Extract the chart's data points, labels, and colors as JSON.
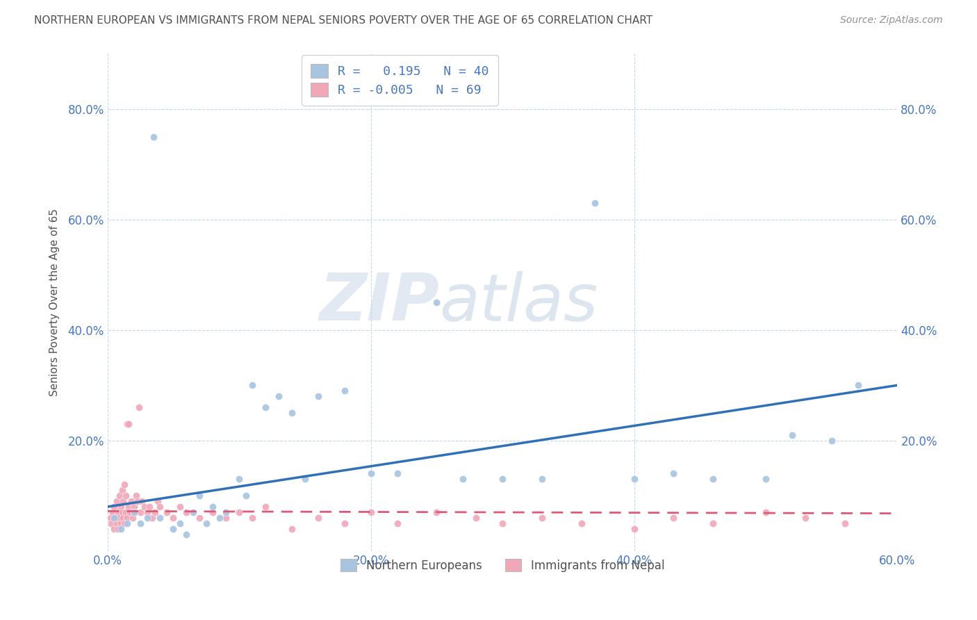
{
  "title": "NORTHERN EUROPEAN VS IMMIGRANTS FROM NEPAL SENIORS POVERTY OVER THE AGE OF 65 CORRELATION CHART",
  "source": "Source: ZipAtlas.com",
  "ylabel": "Seniors Poverty Over the Age of 65",
  "xlim": [
    0.0,
    0.6
  ],
  "ylim": [
    0.0,
    0.9
  ],
  "xtick_vals": [
    0.0,
    0.2,
    0.4,
    0.6
  ],
  "ytick_vals": [
    0.2,
    0.4,
    0.6,
    0.8
  ],
  "blue_R": 0.195,
  "blue_N": 40,
  "pink_R": -0.005,
  "pink_N": 69,
  "blue_color": "#a8c4e0",
  "pink_color": "#f0a8b8",
  "blue_line_color": "#3070b8",
  "pink_line_color": "#e05878",
  "watermark_zip": "ZIP",
  "watermark_atlas": "atlas",
  "legend_label_blue": "Northern Europeans",
  "legend_label_pink": "Immigrants from Nepal",
  "blue_scatter_x": [
    0.005,
    0.01,
    0.015,
    0.02,
    0.025,
    0.03,
    0.035,
    0.04,
    0.05,
    0.055,
    0.06,
    0.065,
    0.07,
    0.075,
    0.08,
    0.085,
    0.09,
    0.1,
    0.105,
    0.11,
    0.12,
    0.13,
    0.14,
    0.15,
    0.16,
    0.18,
    0.2,
    0.22,
    0.25,
    0.27,
    0.3,
    0.33,
    0.37,
    0.4,
    0.43,
    0.46,
    0.5,
    0.52,
    0.55,
    0.57
  ],
  "blue_scatter_y": [
    0.06,
    0.04,
    0.05,
    0.07,
    0.05,
    0.06,
    0.75,
    0.06,
    0.04,
    0.05,
    0.03,
    0.07,
    0.1,
    0.05,
    0.08,
    0.06,
    0.07,
    0.13,
    0.1,
    0.3,
    0.26,
    0.28,
    0.25,
    0.13,
    0.28,
    0.29,
    0.14,
    0.14,
    0.45,
    0.13,
    0.13,
    0.13,
    0.63,
    0.13,
    0.14,
    0.13,
    0.13,
    0.21,
    0.2,
    0.3
  ],
  "pink_scatter_x": [
    0.002,
    0.003,
    0.004,
    0.005,
    0.005,
    0.006,
    0.007,
    0.007,
    0.008,
    0.008,
    0.009,
    0.009,
    0.01,
    0.01,
    0.011,
    0.011,
    0.012,
    0.012,
    0.013,
    0.013,
    0.014,
    0.014,
    0.015,
    0.015,
    0.016,
    0.016,
    0.017,
    0.018,
    0.019,
    0.02,
    0.021,
    0.022,
    0.023,
    0.024,
    0.025,
    0.026,
    0.028,
    0.03,
    0.032,
    0.034,
    0.036,
    0.038,
    0.04,
    0.045,
    0.05,
    0.055,
    0.06,
    0.07,
    0.08,
    0.09,
    0.1,
    0.11,
    0.12,
    0.14,
    0.16,
    0.18,
    0.2,
    0.22,
    0.25,
    0.28,
    0.3,
    0.33,
    0.36,
    0.4,
    0.43,
    0.46,
    0.5,
    0.53,
    0.56
  ],
  "pink_scatter_y": [
    0.06,
    0.05,
    0.07,
    0.04,
    0.08,
    0.06,
    0.05,
    0.09,
    0.04,
    0.07,
    0.06,
    0.1,
    0.05,
    0.08,
    0.07,
    0.11,
    0.06,
    0.09,
    0.05,
    0.12,
    0.07,
    0.1,
    0.06,
    0.23,
    0.08,
    0.23,
    0.07,
    0.09,
    0.06,
    0.08,
    0.07,
    0.1,
    0.09,
    0.26,
    0.07,
    0.09,
    0.08,
    0.07,
    0.08,
    0.06,
    0.07,
    0.09,
    0.08,
    0.07,
    0.06,
    0.08,
    0.07,
    0.06,
    0.07,
    0.06,
    0.07,
    0.06,
    0.08,
    0.04,
    0.06,
    0.05,
    0.07,
    0.05,
    0.07,
    0.06,
    0.05,
    0.06,
    0.05,
    0.04,
    0.06,
    0.05,
    0.07,
    0.06,
    0.05
  ],
  "grid_color": "#c8d8ec",
  "background_color": "#ffffff",
  "title_color": "#505050",
  "axis_color": "#4878c0",
  "marker_size": 55
}
